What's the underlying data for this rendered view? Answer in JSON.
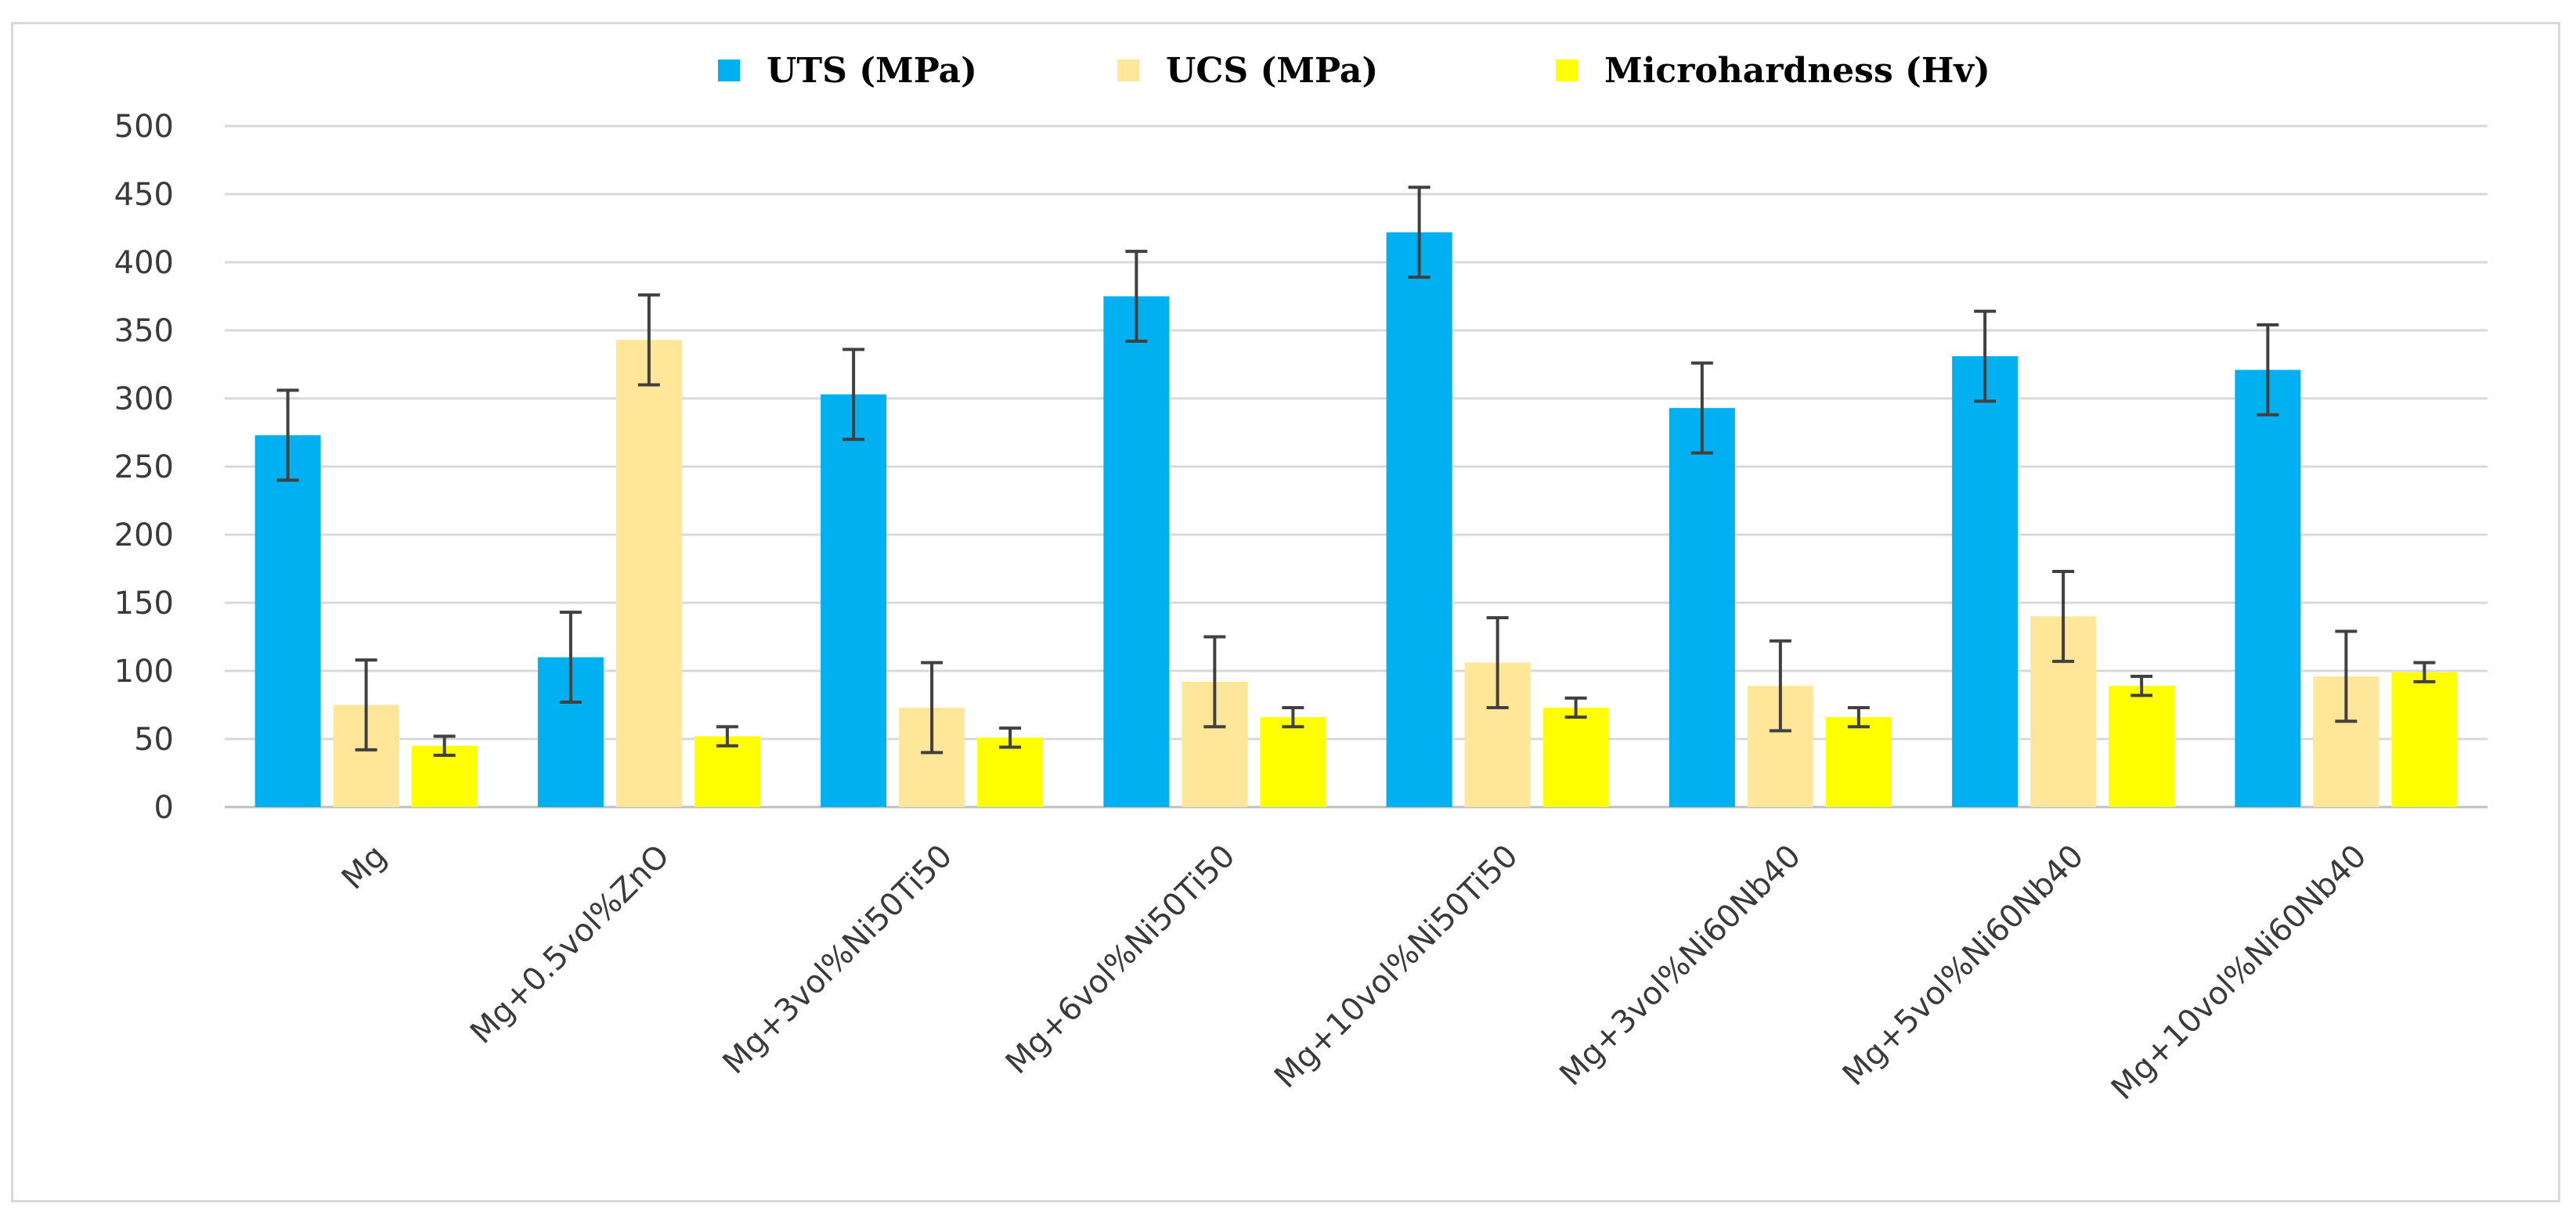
{
  "chart_data": {
    "type": "bar",
    "title": "",
    "xlabel": "",
    "ylabel": "",
    "ylim": [
      0,
      500
    ],
    "yticks": [
      0,
      50,
      100,
      150,
      200,
      250,
      300,
      350,
      400,
      450,
      500
    ],
    "grid": true,
    "legend_position": "top-center",
    "categories": [
      "Mg",
      "Mg+0.5vol%ZnO",
      "Mg+3vol%Ni50Ti50",
      "Mg+6vol%Ni50Ti50",
      "Mg+10vol%Ni50Ti50",
      "Mg+3vol%Ni60Nb40",
      "Mg+5vol%Ni60Nb40",
      "Mg+10vol%Ni60Nb40"
    ],
    "series": [
      {
        "name": "UTS (MPa)",
        "color": "#00b0f0",
        "values": [
          273,
          110,
          303,
          375,
          422,
          293,
          331,
          321
        ],
        "error": [
          33,
          33,
          33,
          33,
          33,
          33,
          33,
          33
        ]
      },
      {
        "name": "UCS (MPa)",
        "color": "#ffe699",
        "values": [
          75,
          343,
          73,
          92,
          106,
          89,
          140,
          96
        ],
        "error": [
          33,
          33,
          33,
          33,
          33,
          33,
          33,
          33
        ]
      },
      {
        "name": "Microhardness (Hv)",
        "color": "#ffff00",
        "values": [
          45,
          52,
          51,
          66,
          73,
          66,
          89,
          99
        ],
        "error": [
          7,
          7,
          7,
          7,
          7,
          7,
          7,
          7
        ]
      }
    ]
  }
}
